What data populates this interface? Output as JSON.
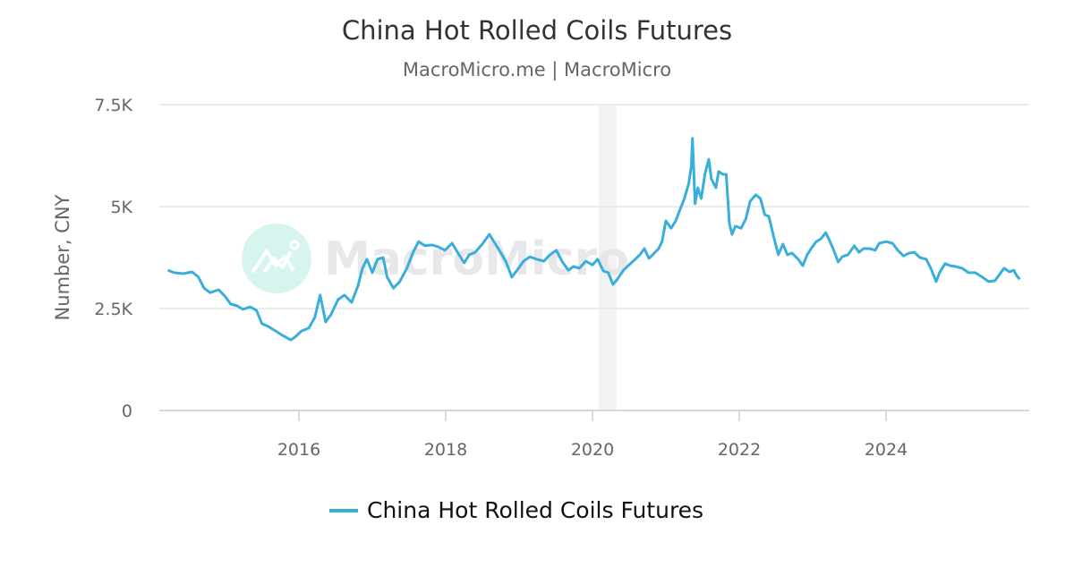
{
  "chart_data": {
    "type": "line",
    "title": "China Hot Rolled Coils Futures",
    "subtitle": "MacroMicro.me | MacroMicro",
    "ylabel": "Number, CNY",
    "xlabel": "",
    "ylim": [
      0,
      7500
    ],
    "xlim": [
      "2014-03-01",
      "2025-10-31"
    ],
    "y_ticks": [
      {
        "value": 0,
        "label": "0"
      },
      {
        "value": 2500,
        "label": "2.5K"
      },
      {
        "value": 5000,
        "label": "5K"
      },
      {
        "value": 7500,
        "label": "7.5K"
      }
    ],
    "x_ticks": [
      {
        "value": "2016-01-01",
        "label": "2016"
      },
      {
        "value": "2018-01-01",
        "label": "2018"
      },
      {
        "value": "2020-01-01",
        "label": "2020"
      },
      {
        "value": "2022-01-01",
        "label": "2022"
      },
      {
        "value": "2024-01-01",
        "label": "2024"
      }
    ],
    "grid": true,
    "legend_position": "bottom",
    "shaded_bands": [
      {
        "from": "2020-02-01",
        "to": "2020-04-30",
        "color": "#f2f2f2"
      }
    ],
    "watermark": "MacroMicro",
    "colors": {
      "line": "#3aaedb",
      "grid": "#e6e6e6",
      "axis": "#cccccc",
      "watermark_circle": "#d6f5ef",
      "watermark_text": "#e6e6e8"
    },
    "series": [
      {
        "name": "China Hot Rolled Coils Futures",
        "x": [
          "2014-03-20",
          "2014-04-21",
          "2014-06-04",
          "2014-07-19",
          "2014-08-19",
          "2014-09-16",
          "2014-10-16",
          "2014-11-28",
          "2015-01-01",
          "2015-01-27",
          "2015-02-28",
          "2015-03-28",
          "2015-05-04",
          "2015-06-04",
          "2015-07-01",
          "2015-08-02",
          "2015-09-07",
          "2015-10-12",
          "2015-11-21",
          "2015-12-13",
          "2016-01-14",
          "2016-02-19",
          "2016-03-20",
          "2016-04-16",
          "2016-05-13",
          "2016-06-09",
          "2016-07-14",
          "2016-08-15",
          "2016-09-20",
          "2016-10-21",
          "2016-11-13",
          "2016-12-05",
          "2017-01-01",
          "2017-01-27",
          "2017-02-24",
          "2017-03-16",
          "2017-04-16",
          "2017-05-17",
          "2017-06-22",
          "2017-07-23",
          "2017-08-19",
          "2017-09-20",
          "2017-10-25",
          "2017-11-26",
          "2017-12-27",
          "2018-02-02",
          "2018-03-03",
          "2018-04-03",
          "2018-04-28",
          "2018-05-28",
          "2018-07-05",
          "2018-08-06",
          "2018-09-03",
          "2018-10-03",
          "2018-10-28",
          "2018-11-26",
          "2018-12-22",
          "2019-01-23",
          "2019-02-24",
          "2019-03-28",
          "2019-05-04",
          "2019-06-04",
          "2019-07-05",
          "2019-08-02",
          "2019-09-03",
          "2019-09-28",
          "2019-10-28",
          "2019-11-28",
          "2020-01-01",
          "2020-01-27",
          "2020-02-24",
          "2020-03-20",
          "2020-04-12",
          "2020-05-04",
          "2020-06-04",
          "2020-07-01",
          "2020-08-02",
          "2020-08-24",
          "2020-09-16",
          "2020-10-08",
          "2020-10-28",
          "2020-11-26",
          "2020-12-13",
          "2021-01-01",
          "2021-01-27",
          "2021-02-19",
          "2021-03-11",
          "2021-04-03",
          "2021-04-25",
          "2021-05-08",
          "2021-05-13",
          "2021-05-26",
          "2021-06-09",
          "2021-06-26",
          "2021-07-14",
          "2021-08-02",
          "2021-08-15",
          "2021-09-07",
          "2021-09-20",
          "2021-10-12",
          "2021-10-28",
          "2021-11-13",
          "2021-11-26",
          "2021-12-13",
          "2022-01-10",
          "2022-02-02",
          "2022-02-24",
          "2022-03-24",
          "2022-04-16",
          "2022-05-08",
          "2022-05-28",
          "2022-06-22",
          "2022-07-14",
          "2022-08-06",
          "2022-08-28",
          "2022-09-20",
          "2022-10-21",
          "2022-11-13",
          "2022-12-05",
          "2022-12-27",
          "2023-01-19",
          "2023-02-11",
          "2023-03-07",
          "2023-03-24",
          "2023-04-16",
          "2023-05-08",
          "2023-05-28",
          "2023-06-26",
          "2023-07-27",
          "2023-08-19",
          "2023-09-11",
          "2023-10-12",
          "2023-11-08",
          "2023-11-28",
          "2024-01-01",
          "2024-02-02",
          "2024-02-28",
          "2024-03-28",
          "2024-04-25",
          "2024-05-21",
          "2024-06-18",
          "2024-07-19",
          "2024-08-11",
          "2024-09-07",
          "2024-09-24",
          "2024-10-21",
          "2024-11-17",
          "2024-12-13",
          "2025-01-14",
          "2025-02-15",
          "2025-03-20",
          "2025-04-25",
          "2025-05-26",
          "2025-06-26",
          "2025-07-23",
          "2025-08-11",
          "2025-09-07",
          "2025-09-28",
          "2025-10-12",
          "2025-10-28"
        ],
        "values": [
          3440,
          3380,
          3355,
          3400,
          3270,
          3000,
          2890,
          2960,
          2785,
          2610,
          2565,
          2480,
          2540,
          2455,
          2130,
          2060,
          1950,
          1840,
          1730,
          1800,
          1950,
          2020,
          2280,
          2830,
          2170,
          2350,
          2720,
          2830,
          2650,
          3050,
          3490,
          3710,
          3380,
          3710,
          3750,
          3270,
          3000,
          3160,
          3490,
          3880,
          4140,
          4040,
          4060,
          4010,
          3930,
          4100,
          3860,
          3620,
          3820,
          3880,
          4100,
          4320,
          4100,
          3860,
          3640,
          3270,
          3440,
          3660,
          3770,
          3710,
          3660,
          3820,
          3930,
          3660,
          3440,
          3530,
          3490,
          3660,
          3570,
          3710,
          3420,
          3380,
          3090,
          3220,
          3440,
          3570,
          3710,
          3820,
          3970,
          3730,
          3820,
          3970,
          4140,
          4650,
          4470,
          4650,
          4910,
          5200,
          5570,
          6010,
          6670,
          5070,
          5460,
          5200,
          5790,
          6160,
          5680,
          5460,
          5860,
          5790,
          5790,
          4580,
          4320,
          4520,
          4470,
          4690,
          5130,
          5290,
          5200,
          4800,
          4760,
          4250,
          3820,
          4080,
          3820,
          3860,
          3710,
          3550,
          3820,
          3990,
          4140,
          4210,
          4360,
          4190,
          3930,
          3640,
          3770,
          3820,
          4040,
          3880,
          3970,
          3970,
          3930,
          4100,
          4140,
          4100,
          3930,
          3790,
          3860,
          3880,
          3750,
          3710,
          3490,
          3160,
          3380,
          3600,
          3550,
          3530,
          3490,
          3380,
          3380,
          3270,
          3160,
          3180,
          3360,
          3490,
          3400,
          3440,
          3310,
          3220
        ]
      }
    ]
  }
}
